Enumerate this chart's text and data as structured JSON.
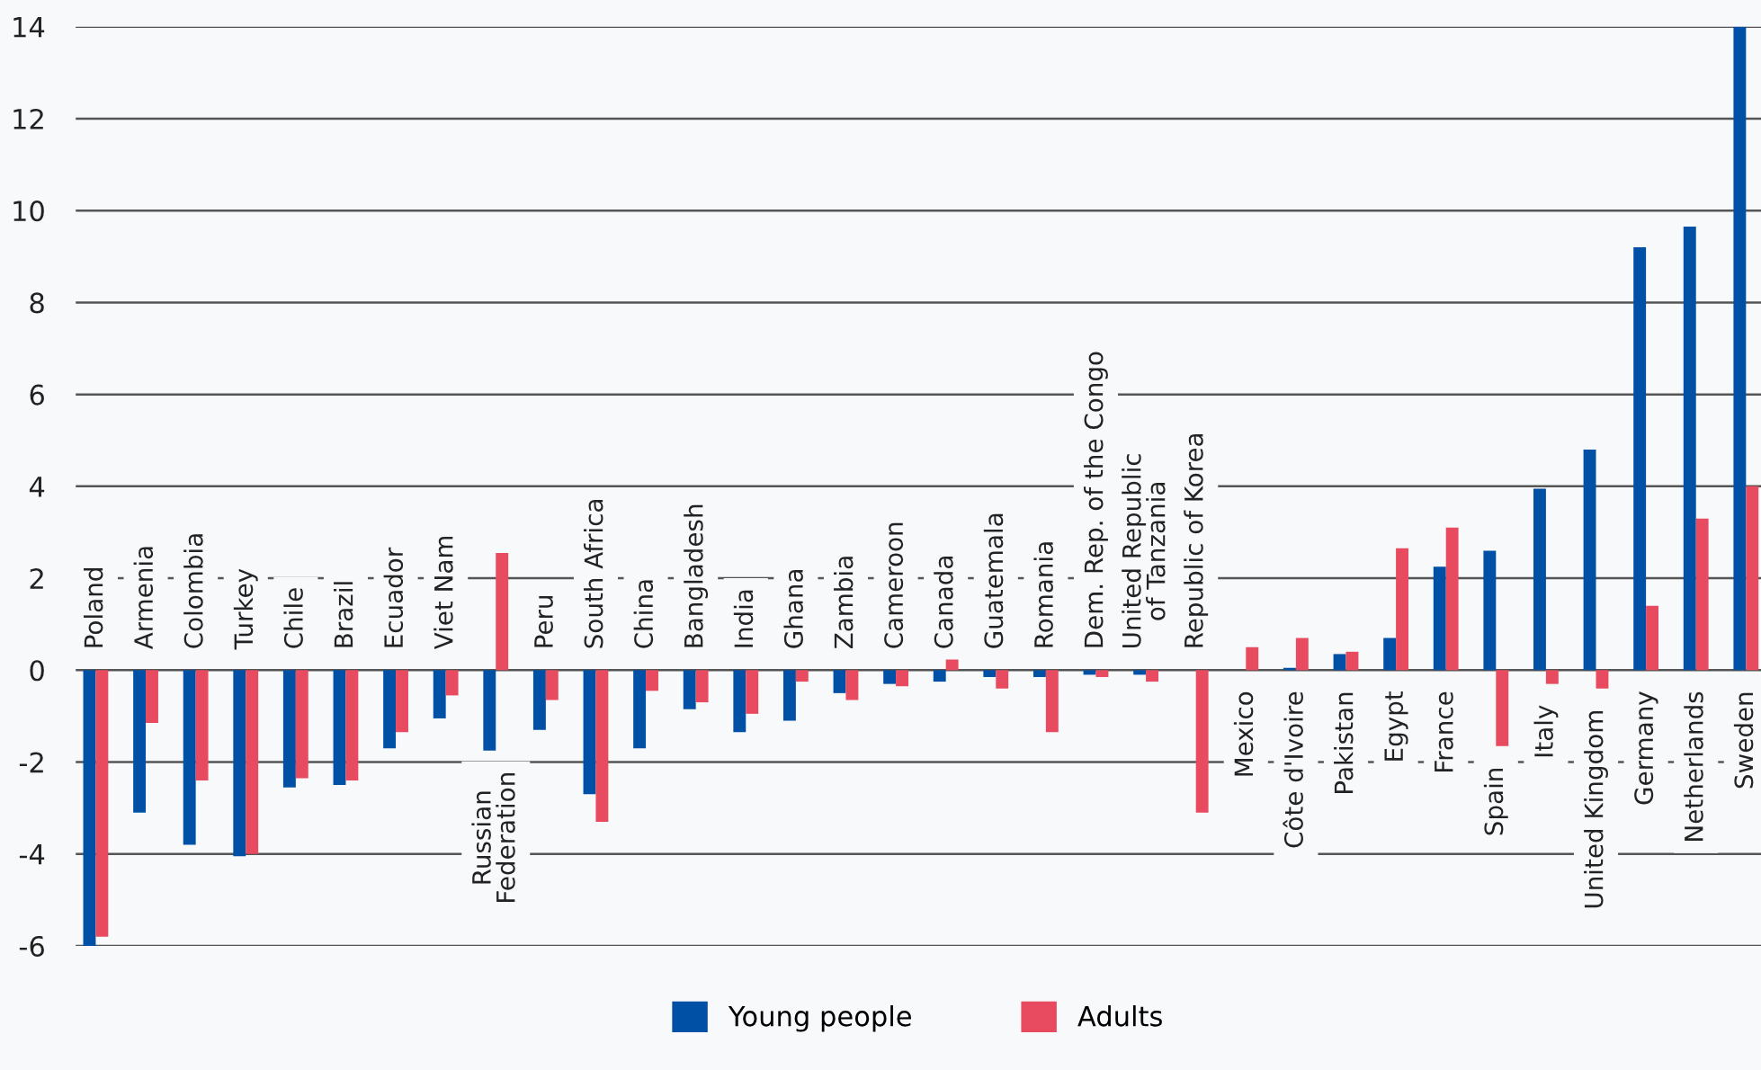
{
  "chart_data": {
    "type": "bar",
    "categories": [
      "Poland",
      "Armenia",
      "Colombia",
      "Turkey",
      "Chile",
      "Brazil",
      "Ecuador",
      "Viet Nam",
      "Russian\nFederation",
      "Peru",
      "South Africa",
      "China",
      "Bangladesh",
      "India",
      "Ghana",
      "Zambia",
      "Cameroon",
      "Canada",
      "Guatemala",
      "Romania",
      "Dem. Rep. of the Congo",
      "United Republic\nof Tanzania",
      "Republic of Korea",
      "Mexico",
      "Côte d'Ivoire",
      "Pakistan",
      "Egypt",
      "France",
      "Spain",
      "Italy",
      "United Kingdom",
      "Germany",
      "Netherlands",
      "Sweden"
    ],
    "series": [
      {
        "name": "Young people",
        "color": "#0050a5",
        "values": [
          -6.0,
          -3.1,
          -3.8,
          -4.05,
          -2.55,
          -2.5,
          -1.7,
          -1.05,
          -1.75,
          -1.3,
          -2.7,
          -1.7,
          -0.85,
          -1.35,
          -1.1,
          -0.5,
          -0.3,
          -0.25,
          -0.15,
          -0.15,
          -0.1,
          -0.1,
          null,
          null,
          0.05,
          0.35,
          0.7,
          2.25,
          2.6,
          3.95,
          4.8,
          9.2,
          9.65,
          14.0
        ]
      },
      {
        "name": "Adults",
        "color": "#e84a5f",
        "values": [
          -5.8,
          -1.15,
          -2.4,
          -4.0,
          -2.35,
          -2.4,
          -1.35,
          -0.55,
          2.55,
          -0.65,
          -3.3,
          -0.45,
          -0.7,
          -0.95,
          -0.25,
          -0.65,
          -0.35,
          0.25,
          -0.4,
          -1.35,
          -0.15,
          -0.25,
          -3.1,
          0.5,
          0.7,
          0.4,
          2.65,
          3.1,
          -1.65,
          -0.3,
          -0.4,
          1.4,
          3.3,
          4.0
        ]
      }
    ],
    "ylim": [
      -6,
      14
    ],
    "yticks": [
      -6,
      -4,
      -2,
      0,
      2,
      4,
      6,
      8,
      10,
      12,
      14
    ],
    "grid": "y",
    "legend": "bottom"
  }
}
